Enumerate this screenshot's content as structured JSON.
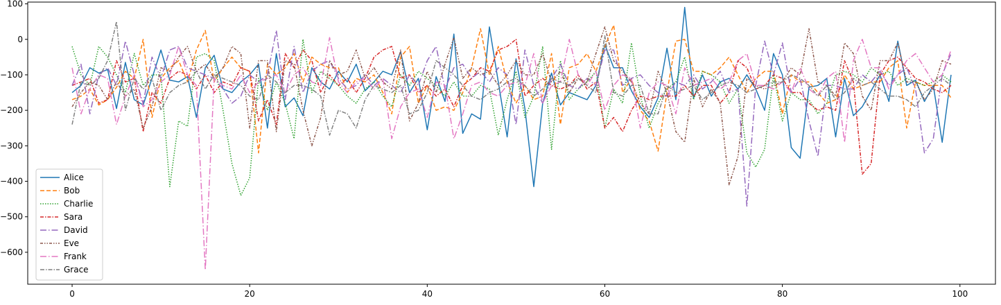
{
  "chart_data": {
    "type": "line",
    "title": "",
    "xlabel": "",
    "ylabel": "",
    "xlim": [
      -5,
      104
    ],
    "ylim": [
      -690,
      105
    ],
    "xticks": [
      0,
      20,
      40,
      60,
      80,
      100
    ],
    "xtick_labels": [
      "0",
      "20",
      "40",
      "60",
      "80",
      "100"
    ],
    "yticks": [
      100,
      0,
      -100,
      -200,
      -300,
      -400,
      -500,
      -600
    ],
    "ytick_labels": [
      "100",
      "0",
      "−100",
      "−200",
      "−300",
      "−400",
      "−500",
      "−600"
    ],
    "grid": false,
    "legend_position": "lower-left",
    "x": [
      0,
      1,
      2,
      3,
      4,
      5,
      6,
      7,
      8,
      9,
      10,
      11,
      12,
      13,
      14,
      15,
      16,
      17,
      18,
      19,
      20,
      21,
      22,
      23,
      24,
      25,
      26,
      27,
      28,
      29,
      30,
      31,
      32,
      33,
      34,
      35,
      36,
      37,
      38,
      39,
      40,
      41,
      42,
      43,
      44,
      45,
      46,
      47,
      48,
      49,
      50,
      51,
      52,
      53,
      54,
      55,
      56,
      57,
      58,
      59,
      60,
      61,
      62,
      63,
      64,
      65,
      66,
      67,
      68,
      69,
      70,
      71,
      72,
      73,
      74,
      75,
      76,
      77,
      78,
      79,
      80,
      81,
      82,
      83,
      84,
      85,
      86,
      87,
      88,
      89,
      90,
      91,
      92,
      93,
      94,
      95,
      96,
      97,
      98,
      99
    ],
    "series": [
      {
        "name": "Alice",
        "color": "#1f77b4",
        "dash": "",
        "values": [
          -150,
          -130,
          -80,
          -95,
          -85,
          -195,
          -65,
          -170,
          -185,
          -110,
          -30,
          -115,
          -120,
          -105,
          -220,
          -80,
          -45,
          -140,
          -150,
          -120,
          -100,
          -70,
          -250,
          -40,
          -190,
          -165,
          -215,
          -80,
          -120,
          -140,
          -90,
          -120,
          -70,
          -145,
          -120,
          -90,
          -100,
          -35,
          -150,
          -110,
          -255,
          -105,
          -175,
          15,
          -265,
          -210,
          -225,
          35,
          -120,
          -275,
          -55,
          -195,
          -415,
          -180,
          -95,
          -185,
          -150,
          -160,
          -170,
          -130,
          -15,
          -80,
          -80,
          -145,
          -190,
          -220,
          -165,
          -25,
          -170,
          90,
          -165,
          -100,
          -160,
          -120,
          -110,
          -140,
          -100,
          -140,
          -200,
          -40,
          -100,
          -305,
          -335,
          -135,
          -130,
          -110,
          -275,
          -110,
          -215,
          -190,
          -145,
          -100,
          -175,
          -5,
          -130,
          -115,
          -175,
          -130,
          -290,
          -100
        ]
      },
      {
        "name": "Bob",
        "color": "#ff7f0e",
        "dash": "6,3",
        "values": [
          -170,
          -160,
          -140,
          -185,
          -170,
          -135,
          -90,
          -110,
          0,
          -220,
          -110,
          -80,
          -60,
          -120,
          -30,
          25,
          -120,
          -80,
          -50,
          -80,
          -90,
          -320,
          -70,
          -100,
          -80,
          -40,
          -120,
          -50,
          -70,
          -80,
          -80,
          -150,
          -110,
          -120,
          -100,
          -150,
          -210,
          -50,
          -20,
          -180,
          -130,
          -200,
          -190,
          -200,
          -150,
          -80,
          30,
          -100,
          -20,
          -120,
          -180,
          -130,
          -170,
          -160,
          -40,
          -240,
          -80,
          -70,
          -40,
          -90,
          -20,
          40,
          -150,
          -110,
          -200,
          -230,
          -315,
          -150,
          -5,
          0,
          -90,
          -90,
          -100,
          -80,
          -50,
          -100,
          -150,
          -110,
          -90,
          -90,
          -210,
          -100,
          -120,
          -120,
          -150,
          -180,
          -170,
          -100,
          -140,
          -130,
          -120,
          -120,
          -80,
          -60,
          -250,
          -120,
          -130,
          -130,
          -130,
          -165
        ]
      },
      {
        "name": "Charlie",
        "color": "#2ca02c",
        "dash": "1.5,2",
        "values": [
          -20,
          -100,
          -130,
          -20,
          -50,
          -100,
          -150,
          -40,
          -130,
          -100,
          -100,
          -415,
          -230,
          -245,
          -50,
          -40,
          -60,
          -200,
          -350,
          -440,
          -390,
          -110,
          -200,
          -120,
          -180,
          -280,
          0,
          -150,
          -90,
          -110,
          -130,
          -160,
          -180,
          -140,
          -120,
          -160,
          -190,
          -100,
          -130,
          -90,
          -110,
          -130,
          -160,
          -120,
          -160,
          -160,
          -130,
          -140,
          -270,
          -170,
          -90,
          -220,
          -160,
          -20,
          -310,
          -60,
          -170,
          -140,
          -120,
          -90,
          -250,
          -140,
          -180,
          -10,
          -160,
          -250,
          -180,
          -140,
          -120,
          -50,
          -170,
          -90,
          -100,
          -120,
          -180,
          -140,
          -320,
          -360,
          -310,
          -100,
          -230,
          -150,
          -170,
          -170,
          -210,
          -180,
          -100,
          -90,
          -100,
          -120,
          -80,
          -100,
          -90,
          -130,
          -110,
          -120,
          -130,
          -120,
          -100,
          -120
        ]
      },
      {
        "name": "Sara",
        "color": "#d62728",
        "dash": "5,2,1.5,2",
        "values": [
          -130,
          -120,
          -110,
          -180,
          -170,
          -60,
          -120,
          -110,
          -260,
          -150,
          -180,
          -110,
          -90,
          -100,
          -140,
          -100,
          -150,
          -120,
          -130,
          -80,
          -90,
          -230,
          -170,
          -240,
          -40,
          -80,
          -30,
          -60,
          -150,
          -100,
          -130,
          -110,
          -150,
          -110,
          -50,
          -30,
          -20,
          -110,
          -100,
          -150,
          -130,
          -160,
          -140,
          -190,
          -130,
          -110,
          -80,
          -90,
          -30,
          -20,
          0,
          -160,
          -130,
          -110,
          -130,
          -140,
          -130,
          -100,
          -140,
          -120,
          -250,
          -220,
          -260,
          -200,
          -160,
          -170,
          -160,
          -160,
          -160,
          -130,
          -160,
          -130,
          -130,
          -180,
          -150,
          -60,
          -80,
          -140,
          -130,
          -100,
          -110,
          -150,
          -150,
          -180,
          -200,
          -190,
          -200,
          -60,
          -120,
          -380,
          -350,
          -100,
          -60,
          -50,
          -80,
          -110,
          -120,
          -140,
          -150,
          -130
        ]
      },
      {
        "name": "David",
        "color": "#9467bd",
        "dash": "9,3,1.5,3",
        "values": [
          -130,
          -70,
          -210,
          -100,
          -80,
          -130,
          -5,
          -100,
          -180,
          -50,
          -110,
          -30,
          -20,
          -80,
          -90,
          -100,
          -110,
          -140,
          -180,
          -160,
          -100,
          -120,
          -100,
          25,
          -170,
          -20,
          -150,
          -90,
          -70,
          -60,
          -110,
          -140,
          -130,
          -100,
          -130,
          -110,
          -130,
          -150,
          -100,
          -130,
          -60,
          -20,
          -140,
          -80,
          -70,
          -110,
          -90,
          -120,
          -80,
          -100,
          -240,
          -30,
          -130,
          -180,
          -110,
          -70,
          -130,
          -140,
          -110,
          -130,
          -30,
          -30,
          -130,
          -110,
          -100,
          -130,
          -150,
          -160,
          -120,
          -130,
          -100,
          -140,
          -120,
          -90,
          -150,
          -140,
          -470,
          -130,
          -5,
          -100,
          -10,
          -150,
          -110,
          -230,
          -330,
          -130,
          -130,
          -140,
          -140,
          -100,
          -120,
          -90,
          -130,
          -100,
          -80,
          -140,
          -320,
          -280,
          -100,
          -40
        ]
      },
      {
        "name": "Eve",
        "color": "#8c564b",
        "dash": "4,2,1.5,2,1.5,2",
        "values": [
          -190,
          -150,
          -120,
          -130,
          -170,
          -120,
          -160,
          -140,
          -250,
          -190,
          -80,
          -90,
          -50,
          -20,
          -90,
          -70,
          -110,
          -80,
          -20,
          -40,
          -250,
          -60,
          -60,
          -260,
          -60,
          -70,
          -200,
          -300,
          -220,
          -60,
          -100,
          -90,
          -30,
          -110,
          -80,
          -120,
          -140,
          -30,
          -230,
          -180,
          -90,
          -150,
          -70,
          5,
          -110,
          -80,
          -100,
          -90,
          -130,
          -100,
          -60,
          -100,
          -100,
          -40,
          -120,
          -90,
          -150,
          -110,
          -120,
          -40,
          35,
          -60,
          -90,
          -120,
          -180,
          -210,
          -90,
          -150,
          -260,
          -290,
          -110,
          -190,
          -140,
          -180,
          -410,
          -330,
          -110,
          -130,
          -140,
          -130,
          -120,
          -80,
          -100,
          30,
          -120,
          -130,
          -160,
          -10,
          -40,
          -160,
          -200,
          -60,
          -60,
          -10,
          -120,
          -120,
          -170,
          -140,
          -60,
          -70
        ]
      },
      {
        "name": "Frank",
        "color": "#e377c2",
        "dash": "9,3,1.5,3",
        "values": [
          -80,
          -210,
          -140,
          -100,
          -110,
          -240,
          -160,
          -100,
          -190,
          -170,
          -120,
          -100,
          -20,
          -100,
          -130,
          -650,
          -110,
          -130,
          -140,
          -100,
          -150,
          -120,
          -110,
          -100,
          -150,
          -100,
          -80,
          -120,
          -130,
          5,
          -120,
          -150,
          -120,
          -110,
          -140,
          -110,
          -280,
          -190,
          -150,
          -140,
          -220,
          -120,
          -130,
          -280,
          -210,
          -130,
          -120,
          -150,
          -160,
          -130,
          -120,
          -130,
          -40,
          -180,
          -130,
          -120,
          0,
          -100,
          -130,
          -90,
          -200,
          -130,
          -100,
          -110,
          -250,
          -150,
          -120,
          -130,
          -210,
          -80,
          -130,
          -120,
          -110,
          -140,
          -120,
          -60,
          -40,
          -130,
          -130,
          -140,
          -120,
          -150,
          -80,
          -140,
          -160,
          -110,
          -90,
          -290,
          -60,
          0,
          -80,
          -80,
          -140,
          -100,
          -60,
          -40,
          -80,
          -120,
          -100,
          -30
        ]
      },
      {
        "name": "Grace",
        "color": "#7f7f7f",
        "dash": "6,2,1.5,2",
        "values": [
          -240,
          -120,
          -130,
          -110,
          -60,
          50,
          -200,
          -110,
          -140,
          -110,
          -200,
          -150,
          -130,
          -120,
          -90,
          -140,
          -100,
          -110,
          -120,
          -130,
          -160,
          -170,
          -100,
          -120,
          -150,
          -130,
          -130,
          -140,
          -160,
          -270,
          -200,
          -210,
          -250,
          -170,
          -130,
          -140,
          -150,
          -130,
          -210,
          -200,
          -150,
          -60,
          -80,
          -100,
          -130,
          -160,
          -170,
          -150,
          -140,
          -120,
          -110,
          -130,
          -160,
          -140,
          -110,
          -120,
          -130,
          -110,
          -130,
          -150,
          10,
          -150,
          -160,
          -130,
          -130,
          -210,
          -210,
          -130,
          -150,
          -140,
          -130,
          -170,
          -150,
          -130,
          -120,
          -130,
          -150,
          -140,
          -130,
          -120,
          -120,
          -100,
          -110,
          -130,
          -160,
          -130,
          -170,
          -150,
          -110,
          -130,
          -120,
          -140,
          -160,
          -160,
          -170,
          -190,
          -150,
          -130,
          -110,
          -130
        ]
      }
    ]
  }
}
